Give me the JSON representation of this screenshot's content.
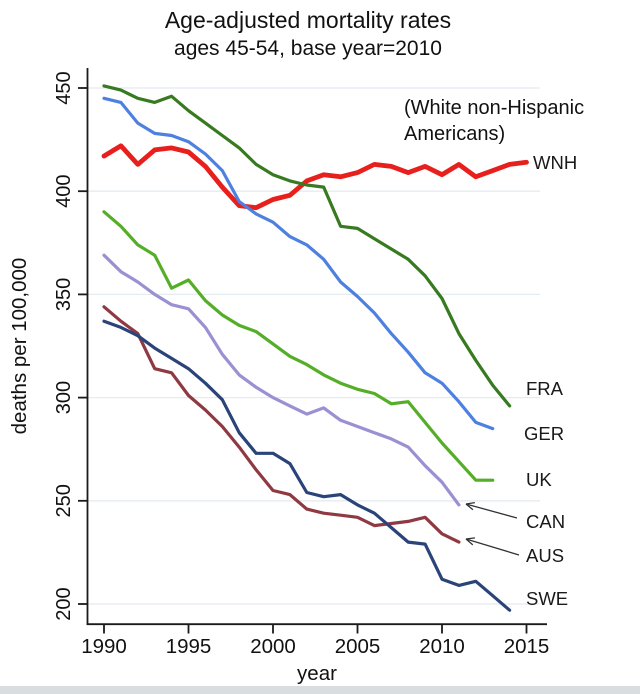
{
  "chart_data": {
    "type": "line",
    "title": "Age-adjusted mortality rates",
    "subtitle": "ages 45-54, base year=2010",
    "xlabel": "year",
    "ylabel": "deaths per 100,000",
    "x_ticks": [
      1990,
      1995,
      2000,
      2005,
      2010,
      2015
    ],
    "y_ticks": [
      200,
      250,
      300,
      350,
      400,
      450
    ],
    "xlim": [
      1989,
      2016
    ],
    "ylim": [
      195,
      460
    ],
    "grid": "horizontal",
    "grid_color": "#e4ebf1",
    "axis_color": "#1a1a1a",
    "legend_position": "right-edge-labels",
    "annotation": {
      "line1": "(White non-Hispanic",
      "line2": "Americans)"
    },
    "series": [
      {
        "name": "WNH",
        "label": "WNH",
        "color": "#e8201d",
        "stroke_width": 4.8,
        "start_year": 1990,
        "arrow": false,
        "values": [
          417,
          422,
          413,
          420,
          421,
          419,
          412,
          402,
          393,
          392,
          396,
          398,
          405,
          408,
          407,
          409,
          413,
          412,
          409,
          412,
          408,
          413,
          407,
          410,
          413,
          414
        ]
      },
      {
        "name": "FRA",
        "label": "FRA",
        "color": "#377a1f",
        "stroke_width": 3.2,
        "start_year": 1990,
        "arrow": false,
        "values": [
          451,
          449,
          445,
          443,
          446,
          439,
          433,
          427,
          421,
          413,
          408,
          405,
          403,
          402,
          383,
          382,
          377,
          372,
          367,
          359,
          348,
          331,
          318,
          306,
          296
        ]
      },
      {
        "name": "GER",
        "label": "GER",
        "color": "#4d80e0",
        "stroke_width": 3.2,
        "start_year": 1990,
        "arrow": false,
        "values": [
          445,
          443,
          433,
          428,
          427,
          424,
          418,
          410,
          395,
          389,
          385,
          378,
          374,
          367,
          356,
          349,
          341,
          331,
          322,
          312,
          307,
          298,
          288,
          285
        ]
      },
      {
        "name": "UK",
        "label": "UK",
        "color": "#54ae27",
        "stroke_width": 3.2,
        "start_year": 1990,
        "arrow": false,
        "values": [
          390,
          383,
          374,
          369,
          353,
          357,
          347,
          340,
          335,
          332,
          326,
          320,
          316,
          311,
          307,
          304,
          302,
          297,
          298,
          288,
          278,
          269,
          260,
          260
        ]
      },
      {
        "name": "CAN",
        "label": "CAN",
        "color": "#9a90d2",
        "stroke_width": 3.2,
        "start_year": 1990,
        "arrow": true,
        "values": [
          369,
          361,
          356,
          350,
          345,
          343,
          334,
          321,
          311,
          305,
          300,
          296,
          292,
          295,
          289,
          286,
          283,
          280,
          276,
          267,
          259,
          248
        ]
      },
      {
        "name": "AUS",
        "label": "AUS",
        "color": "#8f3a42",
        "stroke_width": 3.2,
        "start_year": 1990,
        "arrow": true,
        "values": [
          344,
          337,
          331,
          314,
          312,
          301,
          294,
          286,
          276,
          265,
          255,
          253,
          246,
          244,
          243,
          242,
          238,
          239,
          240,
          242,
          234,
          230
        ]
      },
      {
        "name": "SWE",
        "label": "SWE",
        "color": "#2a4378",
        "stroke_width": 3.2,
        "start_year": 1990,
        "arrow": false,
        "values": [
          337,
          334,
          330,
          324,
          319,
          314,
          307,
          299,
          283,
          273,
          273,
          268,
          254,
          252,
          253,
          248,
          244,
          237,
          230,
          229,
          212,
          209,
          211,
          204,
          197
        ]
      }
    ]
  }
}
